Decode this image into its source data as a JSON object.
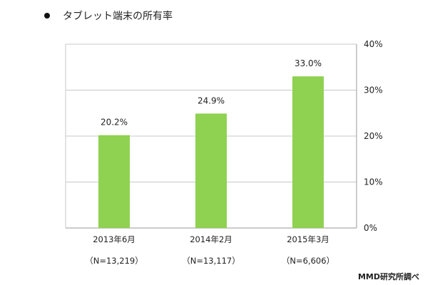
{
  "title": "タブレット端末の所有率",
  "source": "MMD研究所調べ",
  "colors": {
    "bar": "#8fd150",
    "grid": "#c8c8c8",
    "axis": "#999999"
  },
  "chart_data": {
    "type": "bar",
    "title": "タブレット端末の所有率",
    "categories": [
      "2013年6月",
      "2014年2月",
      "2015年3月"
    ],
    "sample_sizes": [
      "（N=13,219）",
      "（N=13,117）",
      "（N=6,606）"
    ],
    "values": [
      20.2,
      24.9,
      33.0
    ],
    "value_labels": [
      "20.2%",
      "24.9%",
      "33.0%"
    ],
    "ylim": [
      0,
      40
    ],
    "yticks": [
      "0%",
      "10%",
      "20%",
      "30%",
      "40%"
    ],
    "ytick_values": [
      0,
      10,
      20,
      30,
      40
    ],
    "y_axis_side": "right",
    "grid": true,
    "xlabel": "",
    "ylabel": ""
  }
}
